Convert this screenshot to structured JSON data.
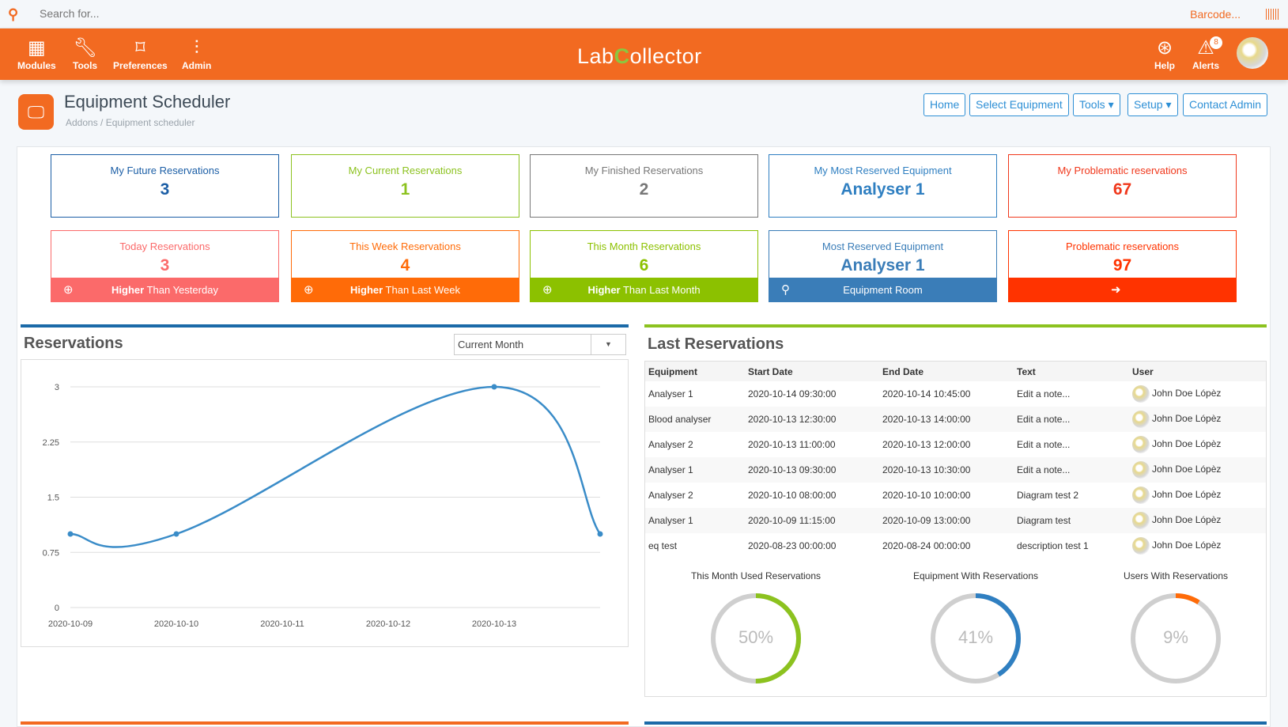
{
  "search": {
    "placeholder": "Search for...",
    "barcode": "Barcode..."
  },
  "nav": {
    "modules": "Modules",
    "tools": "Tools",
    "preferences": "Preferences",
    "admin": "Admin",
    "help": "Help",
    "alerts": "Alerts",
    "alerts_count": "8"
  },
  "logo": {
    "text_a": "Lab",
    "text_b": "C",
    "text_c": "ollector"
  },
  "page": {
    "title": "Equipment Scheduler",
    "breadcrumb": "Addons / Equipment scheduler"
  },
  "toolbar": {
    "home": "Home",
    "select_equipment": "Select Equipment",
    "tools": "Tools ▾",
    "setup": "Setup ▾",
    "contact_admin": "Contact Admin"
  },
  "cards_row1": [
    {
      "label": "My Future Reservations",
      "value": "3",
      "color": "#1b5ea6"
    },
    {
      "label": "My Current Reservations",
      "value": "1",
      "color": "#8cc21f"
    },
    {
      "label": "My Finished Reservations",
      "value": "2",
      "color": "#777777"
    },
    {
      "label": "My Most Reserved Equipment",
      "value": "Analyser 1",
      "color": "#2f7fc1"
    },
    {
      "label": "My Problematic reservations",
      "value": "67",
      "color": "#f0381c"
    }
  ],
  "cards_row2": [
    {
      "label": "Today Reservations",
      "value": "3",
      "color": "#fb6a6a",
      "band_bold": "Higher",
      "band_text": " Than Yesterday"
    },
    {
      "label": "This Week Reservations",
      "value": "4",
      "color": "#ff6b08",
      "band_bold": "Higher",
      "band_text": " Than Last Week"
    },
    {
      "label": "This Month Reservations",
      "value": "6",
      "color": "#8cc100",
      "band_bold": "Higher",
      "band_text": " Than Last Month"
    },
    {
      "label": "Most Reserved Equipment",
      "value": "Analyser 1",
      "color": "#3a7db8",
      "band_bold": "",
      "band_text": "Equipment Room"
    },
    {
      "label": "Problematic reservations",
      "value": "97",
      "color": "#ff3300",
      "band_bold": "",
      "band_text": ""
    }
  ],
  "reservations": {
    "title": "Reservations",
    "period": "Current Month"
  },
  "chart_data": {
    "type": "line",
    "x": [
      "2020-10-09",
      "2020-10-10",
      "2020-10-13",
      "2020-10-14"
    ],
    "values": [
      1,
      1,
      3,
      1
    ],
    "xticks": [
      "2020-10-09",
      "2020-10-10",
      "2020-10-11",
      "2020-10-12",
      "2020-10-13"
    ],
    "yticks": [
      "0",
      "0.75",
      "1.5",
      "2.25",
      "3"
    ],
    "ylim": [
      0,
      3
    ],
    "color": "#3a8cc8",
    "grid": true
  },
  "last": {
    "title": "Last Reservations",
    "headers": [
      "Equipment",
      "Start Date",
      "End Date",
      "Text",
      "User"
    ],
    "rows": [
      [
        "Analyser 1",
        "2020-10-14 09:30:00",
        "2020-10-14 10:45:00",
        "Edit a note...",
        "John Doe Lópèz"
      ],
      [
        "Blood analyser",
        "2020-10-13 12:30:00",
        "2020-10-13 14:00:00",
        "Edit a note...",
        "John Doe Lópèz"
      ],
      [
        "Analyser 2",
        "2020-10-13 11:00:00",
        "2020-10-13 12:00:00",
        "Edit a note...",
        "John Doe Lópèz"
      ],
      [
        "Analyser 1",
        "2020-10-13 09:30:00",
        "2020-10-13 10:30:00",
        "Edit a note...",
        "John Doe Lópèz"
      ],
      [
        "Analyser 2",
        "2020-10-10 08:00:00",
        "2020-10-10 10:00:00",
        "Diagram test 2",
        "John Doe Lópèz"
      ],
      [
        "Analyser 1",
        "2020-10-09 11:15:00",
        "2020-10-09 13:00:00",
        "Diagram test",
        "John Doe Lópèz"
      ],
      [
        "eq test",
        "2020-08-23 00:00:00",
        "2020-08-24 00:00:00",
        "description test 1",
        "John Doe Lópèz"
      ]
    ]
  },
  "donuts": [
    {
      "label": "This Month Used Reservations",
      "text": "50%",
      "percent": 50,
      "color": "#8cc21f"
    },
    {
      "label": "Equipment With Reservations",
      "text": "41%",
      "percent": 41,
      "color": "#2f7fc1"
    },
    {
      "label": "Users With Reservations",
      "text": "9%",
      "percent": 9,
      "color": "#ff6b08"
    }
  ]
}
